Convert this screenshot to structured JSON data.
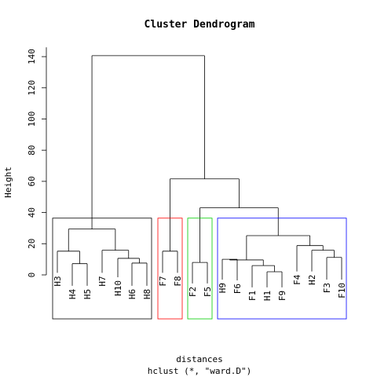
{
  "chart_data": {
    "type": "dendrogram",
    "title": "Cluster Dendrogram",
    "ylabel": "Height",
    "xlabel": "distances",
    "sub": "hclust (*, \"ward.D\")",
    "ylim": [
      0,
      146
    ],
    "yticks": [
      0,
      20,
      40,
      60,
      80,
      100,
      120,
      140
    ],
    "leaves": [
      "H3",
      "H4",
      "H5",
      "H7",
      "H10",
      "H6",
      "H8",
      "F7",
      "F8",
      "F2",
      "F5",
      "H9",
      "F6",
      "F1",
      "H1",
      "F9",
      "F4",
      "H2",
      "F3",
      "F10"
    ],
    "merges": [
      {
        "left": "H4",
        "right": "H5",
        "height": 7.2
      },
      {
        "left": "H10",
        "right": "H8",
        "height": 7.6,
        "note": "H10 joins cluster (H6,H8)"
      },
      {
        "left": "H1",
        "right": "F9",
        "height": 2.0
      },
      {
        "left": "F3",
        "right": "F10",
        "height": 11.2
      },
      {
        "left": "F2",
        "right": "F5",
        "height": 8.0
      },
      {
        "left": "H9",
        "right": "F6",
        "height": 10.0
      },
      {
        "left": "F1",
        "right": "H1F9",
        "height": 6.0
      },
      {
        "left": "H7",
        "right": "H10H6H8",
        "height": 15.8
      },
      {
        "left": "H3",
        "right": "H4H5",
        "height": 15.2
      },
      {
        "left": "F7",
        "right": "F8",
        "height": 15.2
      },
      {
        "left": "H2",
        "right": "F3F10",
        "height": 15.8
      },
      {
        "left": "F4",
        "right": "H2F3F10",
        "height": 18.8
      },
      {
        "left": "H9F6",
        "right": "F1H1F9",
        "height": 9.6
      },
      {
        "left": "H9F6F1H1F9",
        "right": "F4H2F3F10",
        "height": 25.2
      },
      {
        "left": "H3H4H5",
        "right": "H7H10H6H8",
        "height": 29.4
      },
      {
        "left": "F2F5",
        "right": "blue",
        "height": 43.0
      },
      {
        "left": "F7F8",
        "right": "F2F5blue",
        "height": 61.6
      },
      {
        "left": "black",
        "right": "rest",
        "height": 140.6
      }
    ],
    "rect_clusters": [
      {
        "color": "#000000",
        "members": [
          "H3",
          "H4",
          "H5",
          "H7",
          "H10",
          "H6",
          "H8"
        ]
      },
      {
        "color": "#ff0000",
        "members": [
          "F7",
          "F8"
        ]
      },
      {
        "color": "#00cd00",
        "members": [
          "F2",
          "F5"
        ]
      },
      {
        "color": "#0000ff",
        "members": [
          "H9",
          "F6",
          "F1",
          "H1",
          "F9",
          "F4",
          "H2",
          "F3",
          "F10"
        ]
      }
    ]
  }
}
